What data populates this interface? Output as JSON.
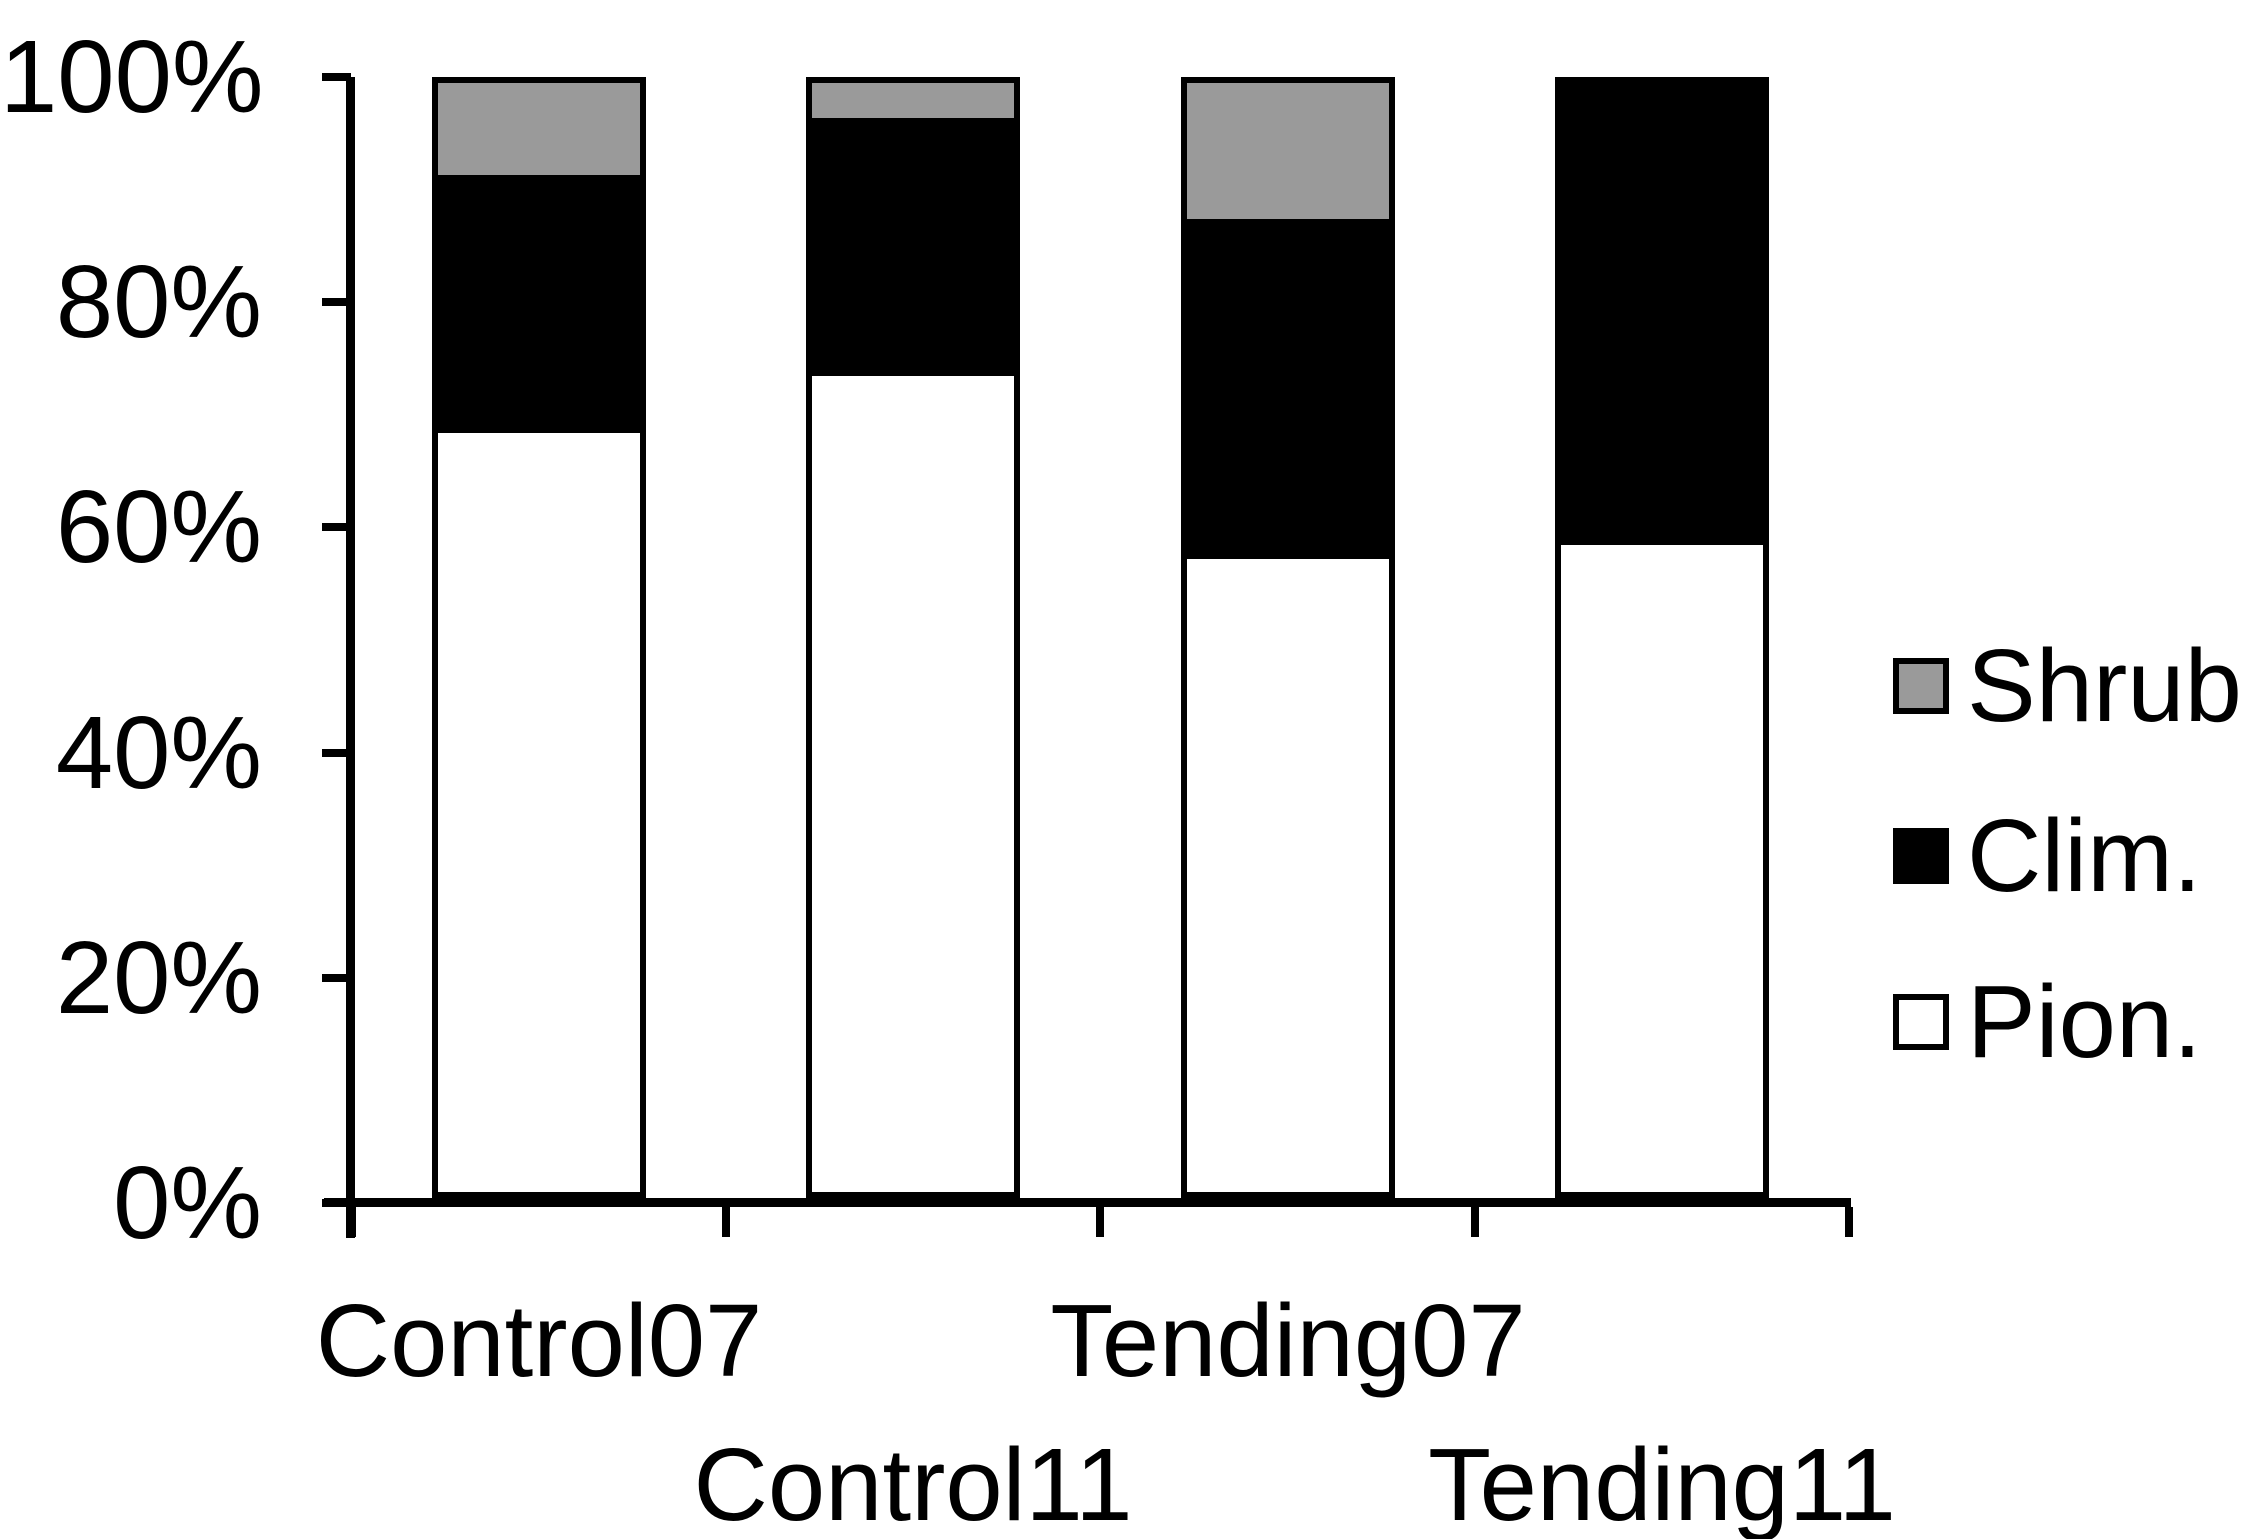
{
  "chart_data": {
    "type": "bar",
    "stacked": "percent",
    "title": "",
    "xlabel": "",
    "ylabel": "",
    "categories": [
      "Control07",
      "Control11",
      "Tending07",
      "Tending11"
    ],
    "series": [
      {
        "name": "Pion.",
        "color": "#ffffff",
        "values": [
          68.4,
          73.6,
          57.1,
          58.3
        ]
      },
      {
        "name": "Clim.",
        "color": "#000000",
        "values": [
          23.3,
          23.2,
          30.6,
          41.7
        ]
      },
      {
        "name": "Shrub",
        "color": "#9a9a9a",
        "values": [
          8.3,
          3.2,
          12.3,
          0
        ]
      }
    ],
    "y_axis": {
      "tick_labels": [
        "100%",
        "80%",
        "60%",
        "40%",
        "20%",
        "0%"
      ],
      "range": [
        0,
        100
      ],
      "grid": false
    },
    "legend": {
      "position": "right",
      "items": [
        {
          "label": "Shrub",
          "color": "#9a9a9a"
        },
        {
          "label": "Clim.",
          "color": "#000000"
        },
        {
          "label": "Pion.",
          "color": "#ffffff"
        }
      ]
    },
    "colors": {
      "axis": "#000000",
      "background": "#ffffff",
      "text": "#000000"
    }
  }
}
